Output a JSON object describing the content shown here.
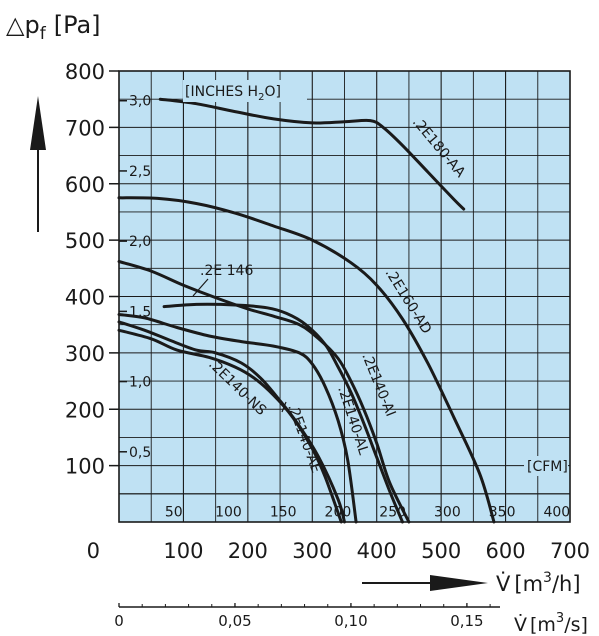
{
  "chart_data": {
    "type": "line",
    "title": "",
    "ylabel": {
      "symbol": "△p",
      "subscript": "f",
      "unit": "[Pa]"
    },
    "xlabel": {
      "symbol": "V̇",
      "unit_prefix": "[m",
      "unit_sup": "3",
      "unit_suffix": "/h]"
    },
    "xlabel2": {
      "symbol": "V̇",
      "unit_prefix": "[m",
      "unit_sup": "3",
      "unit_suffix": "/s]"
    },
    "xlim": [
      0,
      700
    ],
    "ylim": [
      0,
      800
    ],
    "grid": true,
    "x_ticks": [
      "0",
      "100",
      "200",
      "300",
      "400",
      "500",
      "600",
      "700"
    ],
    "y_ticks": [
      "0",
      "100",
      "200",
      "300",
      "400",
      "500",
      "600",
      "700",
      "800"
    ],
    "x2_ticks": [
      "0",
      "0,05",
      "0,10",
      "0,15"
    ],
    "cfm_label": "[CFM]",
    "cfm_ticks": [
      "50",
      "100",
      "150",
      "200",
      "250",
      "300",
      "350",
      "400"
    ],
    "inches_label": {
      "prefix": "[INCHES H",
      "sub": "2",
      "suffix": "O]"
    },
    "inches_ticks": [
      "0,5",
      "1,0",
      "1,5",
      "2,0",
      "2,5",
      "3,0"
    ],
    "series": [
      {
        "name": ".2E180-AA",
        "points": [
          [
            64,
            750
          ],
          [
            120,
            742
          ],
          [
            180,
            728
          ],
          [
            240,
            715
          ],
          [
            300,
            708
          ],
          [
            350,
            710
          ],
          [
            390,
            712
          ],
          [
            410,
            700
          ],
          [
            440,
            668
          ],
          [
            480,
            620
          ],
          [
            520,
            572
          ],
          [
            535,
            555
          ]
        ]
      },
      {
        "name": ".2E160-AD",
        "points": [
          [
            0,
            575
          ],
          [
            60,
            574
          ],
          [
            120,
            565
          ],
          [
            180,
            548
          ],
          [
            240,
            525
          ],
          [
            300,
            500
          ],
          [
            360,
            460
          ],
          [
            400,
            420
          ],
          [
            440,
            360
          ],
          [
            480,
            280
          ],
          [
            520,
            185
          ],
          [
            560,
            85
          ],
          [
            582,
            0
          ]
        ]
      },
      {
        "name": ".2E 146",
        "points": [
          [
            0,
            462
          ],
          [
            50,
            445
          ],
          [
            100,
            420
          ],
          [
            150,
            398
          ],
          [
            200,
            378
          ],
          [
            240,
            365
          ],
          [
            280,
            350
          ],
          [
            310,
            325
          ],
          [
            340,
            290
          ],
          [
            360,
            250
          ],
          [
            380,
            200
          ],
          [
            400,
            140
          ],
          [
            420,
            70
          ],
          [
            450,
            0
          ]
        ]
      },
      {
        "name": ".2E140-AI",
        "points": [
          [
            70,
            382
          ],
          [
            120,
            386
          ],
          [
            180,
            385
          ],
          [
            230,
            380
          ],
          [
            260,
            370
          ],
          [
            290,
            350
          ],
          [
            320,
            315
          ],
          [
            340,
            275
          ],
          [
            360,
            230
          ],
          [
            380,
            175
          ],
          [
            400,
            115
          ],
          [
            420,
            55
          ],
          [
            440,
            0
          ]
        ]
      },
      {
        "name": ".2E140-AL",
        "points": [
          [
            0,
            368
          ],
          [
            40,
            362
          ],
          [
            90,
            345
          ],
          [
            140,
            330
          ],
          [
            190,
            320
          ],
          [
            240,
            312
          ],
          [
            280,
            300
          ],
          [
            300,
            280
          ],
          [
            320,
            240
          ],
          [
            340,
            180
          ],
          [
            355,
            110
          ],
          [
            368,
            0
          ]
        ]
      },
      {
        "name": ".2E140-NS",
        "points": [
          [
            0,
            355
          ],
          [
            40,
            340
          ],
          [
            80,
            322
          ],
          [
            120,
            305
          ],
          [
            150,
            300
          ],
          [
            190,
            282
          ],
          [
            220,
            255
          ],
          [
            250,
            215
          ],
          [
            280,
            170
          ],
          [
            310,
            115
          ],
          [
            340,
            40
          ],
          [
            350,
            0
          ]
        ]
      },
      {
        "name": ".2E140-AE",
        "points": [
          [
            0,
            340
          ],
          [
            50,
            325
          ],
          [
            90,
            305
          ],
          [
            140,
            292
          ],
          [
            180,
            275
          ],
          [
            210,
            255
          ],
          [
            240,
            225
          ],
          [
            270,
            185
          ],
          [
            300,
            130
          ],
          [
            320,
            80
          ],
          [
            345,
            0
          ]
        ]
      }
    ]
  }
}
